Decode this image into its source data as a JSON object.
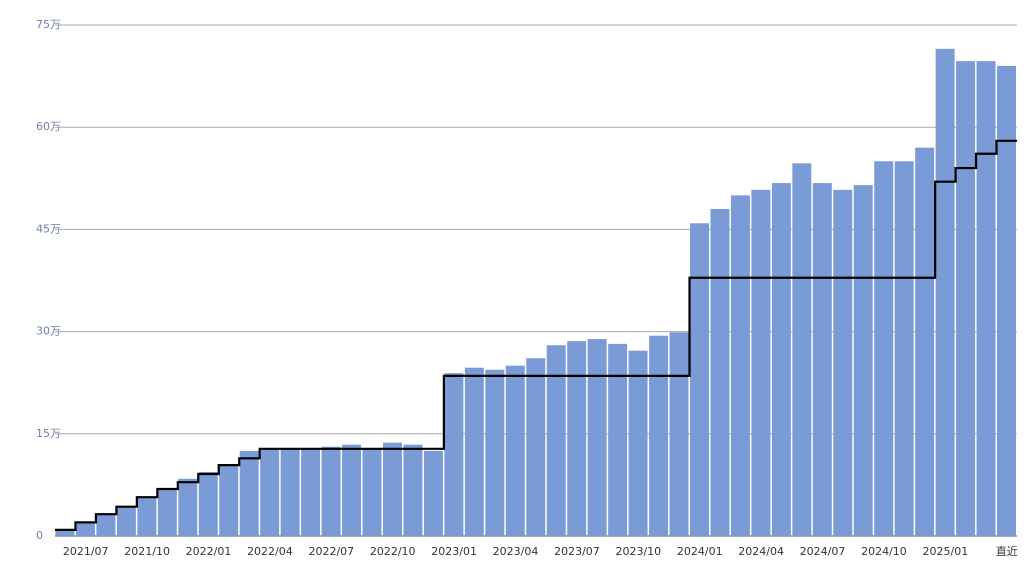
{
  "chart_data": {
    "type": "bar_step",
    "categories": [
      null,
      "2021/07",
      null,
      null,
      "2021/10",
      null,
      null,
      "2022/01",
      null,
      null,
      "2022/04",
      null,
      null,
      "2022/07",
      null,
      null,
      "2022/10",
      null,
      null,
      "2023/01",
      null,
      null,
      "2023/04",
      null,
      null,
      "2023/07",
      null,
      null,
      "2023/10",
      null,
      null,
      "2024/01",
      null,
      null,
      "2024/04",
      null,
      null,
      "2024/07",
      null,
      null,
      "2024/10",
      null,
      null,
      "2025/01",
      null,
      null,
      "直近"
    ],
    "series": [
      {
        "color": "#7b9bd6",
        "values": [
          0.9,
          2.0,
          3.2,
          4.4,
          5.7,
          6.9,
          8.4,
          9.4,
          10.4,
          12.5,
          12.8,
          12.8,
          12.8,
          13.1,
          13.4,
          12.8,
          13.7,
          13.4,
          12.5,
          23.9,
          24.7,
          24.4,
          25.0,
          26.1,
          28.0,
          28.6,
          28.9,
          28.2,
          27.2,
          29.4,
          29.9,
          45.9,
          48.0,
          50.0,
          50.8,
          51.8,
          54.7,
          51.8,
          50.8,
          51.5,
          55.0,
          55.0,
          57.0,
          71.5,
          69.7,
          69.7,
          69.0
        ]
      },
      {
        "color": "#000000",
        "values": [
          0.9,
          2.0,
          3.2,
          4.3,
          5.7,
          6.9,
          7.9,
          9.1,
          10.4,
          11.4,
          12.8,
          12.8,
          12.8,
          12.8,
          12.8,
          12.8,
          12.8,
          12.8,
          12.8,
          23.5,
          23.5,
          23.5,
          23.5,
          23.5,
          23.5,
          23.5,
          23.5,
          23.5,
          23.5,
          23.5,
          23.5,
          37.9,
          37.9,
          37.9,
          37.9,
          37.9,
          37.9,
          37.9,
          37.9,
          37.9,
          37.9,
          37.9,
          37.9,
          52.0,
          54.0,
          56.1,
          58.0
        ]
      }
    ],
    "ylim": [
      0,
      75
    ],
    "yticks": [
      0,
      {
        "value": 15,
        "label": "15万"
      },
      {
        "value": 30,
        "label": "30万"
      },
      {
        "value": 45,
        "label": "45万"
      },
      {
        "value": 60,
        "label": "60万"
      },
      {
        "value": 75,
        "label": "75万"
      }
    ],
    "grid": true
  }
}
